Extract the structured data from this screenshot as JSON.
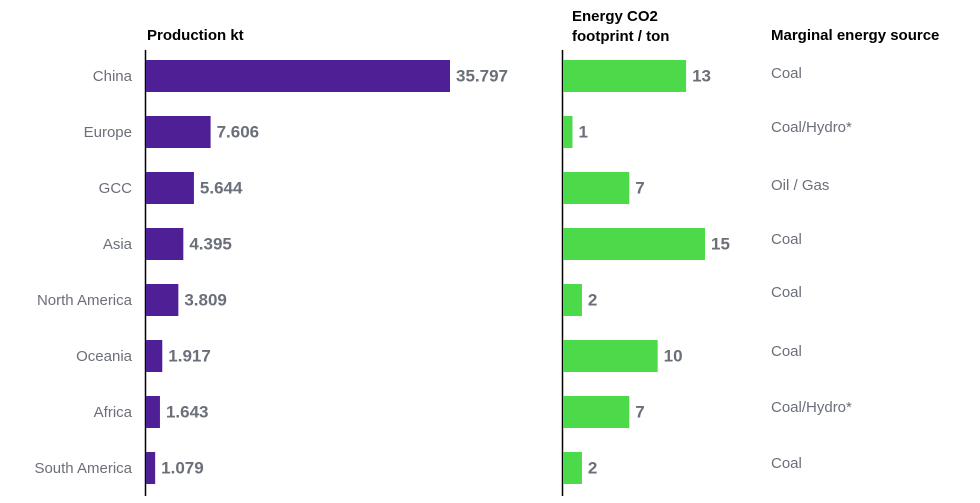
{
  "chart_data": [
    {
      "type": "bar",
      "orientation": "horizontal",
      "title": "Production kt",
      "categories": [
        "China",
        "Europe",
        "GCC",
        "Asia",
        "North America",
        "Oceania",
        "Africa",
        "South America"
      ],
      "values": [
        35.797,
        7.606,
        5.644,
        4.395,
        3.809,
        1.917,
        1.643,
        1.079
      ],
      "color": "#4f1f96"
    },
    {
      "type": "bar",
      "orientation": "horizontal",
      "title": [
        "Energy CO2",
        "footprint / ton"
      ],
      "values": [
        13,
        1,
        7,
        15,
        2,
        10,
        7,
        2
      ],
      "color": "#4cd94a"
    }
  ],
  "marginal_energy_source": {
    "title": "Marginal energy source",
    "values": [
      "Coal",
      "Coal/Hydro*",
      "Oil / Gas",
      "Coal",
      "Coal",
      "Coal",
      "Coal/Hydro*",
      "Coal"
    ]
  }
}
